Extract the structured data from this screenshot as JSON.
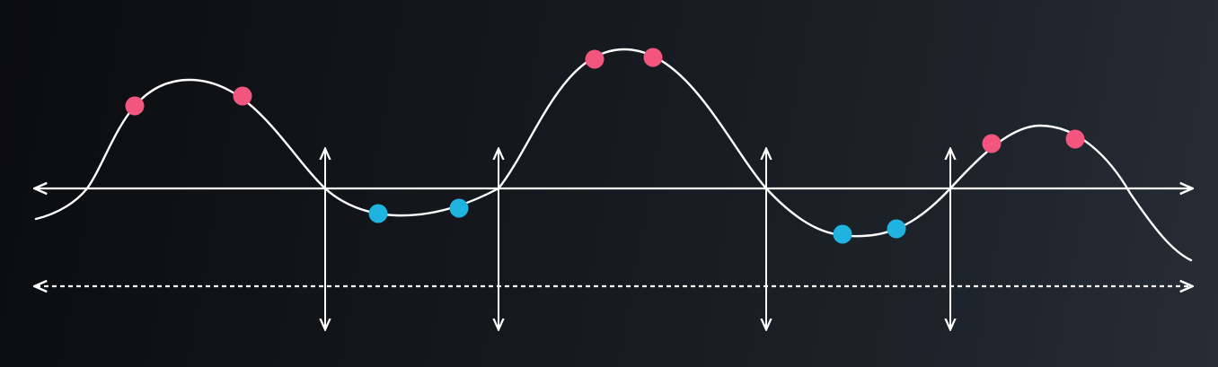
{
  "colors": {
    "background_dark": "#0b0c0f",
    "background_light": "#262d35",
    "line": "#ffffff",
    "positive_point": "#f2557e",
    "negative_point": "#1fb3e0"
  },
  "diagram": {
    "description_type": "sine-like wave crossing horizontal axis, with vertical double-arrow markers at zero crossings and colored points above/below axis",
    "axis": {
      "style": "solid",
      "arrows": "both-ends"
    },
    "baseline": {
      "style": "dashed",
      "arrows": "both-ends"
    },
    "crossing_markers": [
      {
        "name": "crossing-marker-1"
      },
      {
        "name": "crossing-marker-2"
      },
      {
        "name": "crossing-marker-3"
      },
      {
        "name": "crossing-marker-4"
      }
    ],
    "positive_points": 6,
    "negative_points": 4
  }
}
